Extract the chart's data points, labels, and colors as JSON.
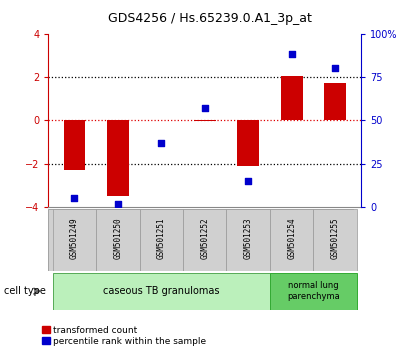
{
  "title": "GDS4256 / Hs.65239.0.A1_3p_at",
  "samples": [
    "GSM501249",
    "GSM501250",
    "GSM501251",
    "GSM501252",
    "GSM501253",
    "GSM501254",
    "GSM501255"
  ],
  "transformed_count": [
    -2.3,
    -3.5,
    0.02,
    -0.05,
    -2.1,
    2.05,
    1.7
  ],
  "percentile_rank": [
    5,
    2,
    37,
    57,
    15,
    88,
    80
  ],
  "ylim_left": [
    -4,
    4
  ],
  "ylim_right": [
    0,
    100
  ],
  "yticks_left": [
    -4,
    -2,
    0,
    2,
    4
  ],
  "yticks_right": [
    0,
    25,
    50,
    75,
    100
  ],
  "yticklabels_right": [
    "0",
    "25",
    "50",
    "75",
    "100%"
  ],
  "bar_color": "#cc0000",
  "dot_color": "#0000cc",
  "cell_type_groups": [
    {
      "label": "caseous TB granulomas",
      "n_samples": 5,
      "color": "#bbf0bb"
    },
    {
      "label": "normal lung\nparenchyma",
      "n_samples": 2,
      "color": "#66cc66"
    }
  ],
  "cell_type_label": "cell type",
  "legend_items": [
    {
      "label": "transformed count",
      "color": "#cc0000"
    },
    {
      "label": "percentile rank within the sample",
      "color": "#0000cc"
    }
  ],
  "bar_width": 0.5,
  "background_color": "#ffffff",
  "tick_label_color_left": "#cc0000",
  "tick_label_color_right": "#0000cc",
  "sample_box_color": "#d0d0d0",
  "sample_box_edge": "#aaaaaa"
}
